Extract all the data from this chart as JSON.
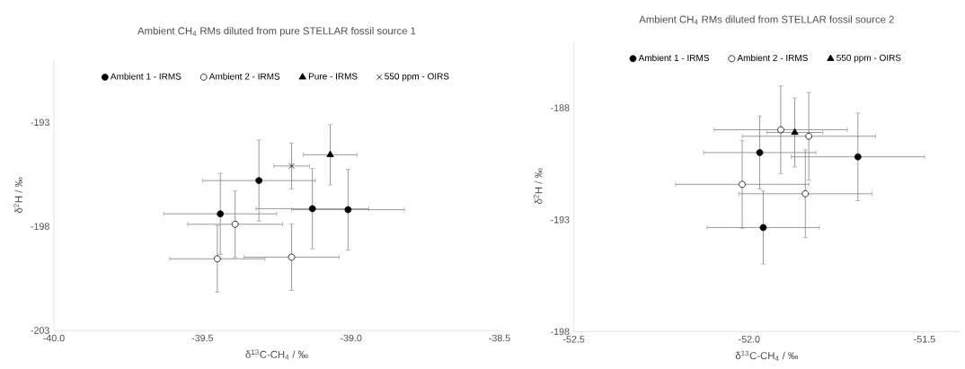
{
  "chart_data": [
    {
      "type": "scatter",
      "title": "Ambient CH$_{4}$ RMs diluted from pure STELLAR fossil source 1",
      "xlabel": "δ$^{13}$C-CH$_{4}$ / ‰",
      "ylabel": "δ$^{2}$H / ‰",
      "xlim": [
        -40.0,
        -38.5
      ],
      "xticks": [
        {
          "value": -40.0,
          "label": "-40.0"
        },
        {
          "value": -39.5,
          "label": "-39.5"
        },
        {
          "value": -39.0,
          "label": "-39.0"
        },
        {
          "value": -38.5,
          "label": "-38.5"
        }
      ],
      "ylim": [
        -203,
        -190
      ],
      "yticks": [
        -203,
        -198,
        -193
      ],
      "grid": false,
      "legend": "top",
      "series": [
        {
          "name": "Ambient 1 - IRMS",
          "color": "#000000",
          "marker": "circle",
          "x": [
            -39.44,
            -39.31,
            -39.13,
            -39.01
          ],
          "values": [
            -197.4,
            -195.8,
            -197.15,
            -197.2
          ],
          "xerrors": [
            0.19,
            0.19,
            0.19,
            0.19
          ],
          "errors": [
            1.95,
            1.95,
            1.93,
            1.94
          ]
        },
        {
          "name": "Ambient 2 - IRMS",
          "color": "#ffffff",
          "marker": "circle",
          "x": [
            -39.39,
            -39.45,
            -39.2
          ],
          "values": [
            -197.9,
            -199.56,
            -199.48
          ],
          "xerrors": [
            0.16,
            0.16,
            0.16
          ],
          "errors": [
            1.6,
            1.6,
            1.6
          ]
        },
        {
          "name": "Pure - IRMS",
          "color": "#000000",
          "marker": "triangle",
          "x": [
            -39.07
          ],
          "values": [
            -194.56
          ],
          "xerrors": [
            0.09
          ],
          "errors": [
            1.45
          ]
        },
        {
          "name": "550 ppm - OIRS",
          "color": "#000000",
          "marker": "cross",
          "x": [
            -39.2
          ],
          "values": [
            -195.1
          ],
          "xerrors": [
            0.06
          ],
          "errors": [
            1.1
          ]
        }
      ]
    },
    {
      "type": "scatter",
      "title": "Ambient CH$_{4}$ RMs diluted from STELLAR fossil source 2",
      "xlabel": "δ$^{13}$C-CH$_{4}$ / ‰",
      "ylabel": "δ$^{2}$H / ‰",
      "xlim": [
        -52.5,
        -51.4
      ],
      "xticks": [
        {
          "value": -52.5,
          "label": "-52.5"
        },
        {
          "value": -52.0,
          "label": "-52.0"
        },
        {
          "value": -51.5,
          "label": "-51.5"
        }
      ],
      "ylim": [
        -198,
        -185
      ],
      "yticks": [
        -198,
        -193,
        -188
      ],
      "grid": false,
      "legend": "top",
      "series": [
        {
          "name": "Ambient 1 - IRMS",
          "color": "#000000",
          "marker": "circle",
          "x": [
            -51.97,
            -51.69,
            -51.96
          ],
          "values": [
            -190.0,
            -190.19,
            -193.35
          ],
          "xerrors": [
            0.16,
            0.19,
            0.16
          ],
          "errors": [
            1.63,
            1.96,
            1.63
          ]
        },
        {
          "name": "Ambient 2 - IRMS",
          "color": "#ffffff",
          "marker": "circle",
          "x": [
            -51.91,
            -51.83,
            -52.02,
            -51.84
          ],
          "values": [
            -188.98,
            -189.27,
            -191.42,
            -191.84
          ],
          "xerrors": [
            0.19,
            0.19,
            0.19,
            0.19
          ],
          "errors": [
            1.96,
            1.96,
            1.96,
            1.96
          ]
        },
        {
          "name": "550 ppm - OIRS",
          "color": "#000000",
          "marker": "triangle",
          "x": [
            -51.87
          ],
          "values": [
            -189.1
          ],
          "xerrors": [
            0.08
          ],
          "errors": [
            1.54
          ]
        }
      ]
    }
  ]
}
